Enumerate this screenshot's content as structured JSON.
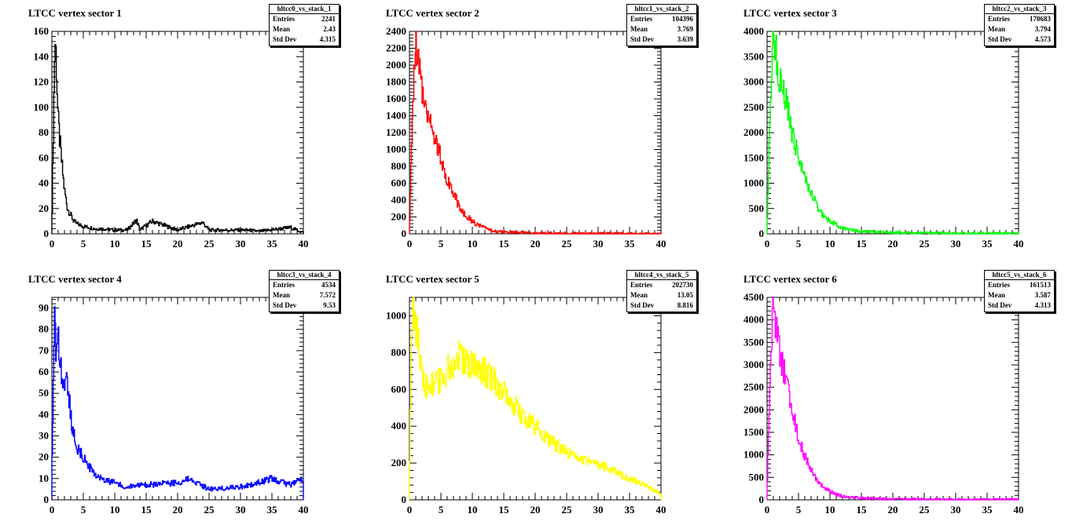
{
  "x_ticks": [
    "0",
    "5",
    "10",
    "15",
    "20",
    "25",
    "30",
    "35",
    "40"
  ],
  "chart_data": [
    {
      "type": "histogram",
      "title": "LTCC vertex sector 1",
      "color": "#000000",
      "stats": {
        "name": "hltcc0_vs_stack_1",
        "rows": [
          {
            "k": "Entries",
            "v": "2241"
          },
          {
            "k": "Mean",
            "v": "2.43"
          },
          {
            "k": "Std Dev",
            "v": "4.315"
          }
        ]
      },
      "xlim": [
        0,
        40
      ],
      "ylim": [
        0,
        160
      ],
      "y_ticks": [
        0,
        20,
        40,
        60,
        80,
        100,
        120,
        140,
        160
      ],
      "x": [
        0,
        0.5,
        0.7,
        1,
        1.5,
        2,
        2.5,
        3,
        3.5,
        4,
        5,
        6,
        7,
        8,
        10,
        12,
        13.5,
        14,
        16,
        20,
        24,
        25,
        29,
        31,
        33,
        38,
        40
      ],
      "y": [
        5,
        155,
        140,
        90,
        60,
        35,
        20,
        15,
        10,
        8,
        6,
        5,
        4,
        4,
        3,
        3,
        11,
        3,
        10,
        3,
        9,
        3,
        3,
        3,
        2,
        5,
        1
      ]
    },
    {
      "type": "histogram",
      "title": "LTCC vertex sector 2",
      "color": "#ff0000",
      "stats": {
        "name": "hltcc1_vs_stack_2",
        "rows": [
          {
            "k": "Entries",
            "v": "104396"
          },
          {
            "k": "Mean",
            "v": "3.769"
          },
          {
            "k": "Std Dev",
            "v": "3.639"
          }
        ]
      },
      "xlim": [
        0,
        40
      ],
      "ylim": [
        0,
        2400
      ],
      "y_ticks": [
        0,
        200,
        400,
        600,
        800,
        1000,
        1200,
        1400,
        1600,
        1800,
        2000,
        2200,
        2400
      ],
      "x": [
        0,
        0.5,
        1,
        1.5,
        2,
        3,
        4,
        5,
        6,
        7,
        8,
        9,
        10,
        11,
        12,
        13,
        15,
        20,
        25,
        30,
        35,
        40
      ],
      "y": [
        0,
        1500,
        2300,
        2000,
        1700,
        1450,
        1150,
        900,
        650,
        500,
        300,
        220,
        150,
        100,
        70,
        40,
        20,
        10,
        5,
        3,
        2,
        1
      ]
    },
    {
      "type": "histogram",
      "title": "LTCC vertex sector 3",
      "color": "#00ff00",
      "stats": {
        "name": "hltcc2_vs_stack_3",
        "rows": [
          {
            "k": "Entries",
            "v": "170683"
          },
          {
            "k": "Mean",
            "v": "3.794"
          },
          {
            "k": "Std Dev",
            "v": "4.573"
          }
        ]
      },
      "xlim": [
        0,
        40
      ],
      "ylim": [
        0,
        4000
      ],
      "y_ticks": [
        0,
        500,
        1000,
        1500,
        2000,
        2500,
        3000,
        3500,
        4000
      ],
      "x": [
        0,
        0.5,
        1,
        1.5,
        2,
        3,
        4,
        5,
        6,
        7,
        8,
        9,
        10,
        11,
        12,
        13,
        15,
        20,
        25,
        30,
        35,
        40
      ],
      "y": [
        100,
        2500,
        4000,
        3500,
        3100,
        2600,
        2000,
        1500,
        1100,
        800,
        550,
        350,
        250,
        180,
        120,
        80,
        50,
        25,
        15,
        10,
        8,
        5
      ]
    },
    {
      "type": "histogram",
      "title": "LTCC vertex sector 4",
      "color": "#0000ff",
      "stats": {
        "name": "hltcc3_vs_stack_4",
        "rows": [
          {
            "k": "Entries",
            "v": "4534"
          },
          {
            "k": "Mean",
            "v": "7.572"
          },
          {
            "k": "Std Dev",
            "v": "9.53"
          }
        ]
      },
      "xlim": [
        0,
        40
      ],
      "ylim": [
        0,
        95
      ],
      "y_ticks": [
        0,
        10,
        20,
        30,
        40,
        50,
        60,
        70,
        80,
        90
      ],
      "x": [
        0,
        0.5,
        0.7,
        1,
        1.5,
        2,
        2.5,
        3,
        3.5,
        4,
        5,
        6,
        7,
        8,
        10,
        12,
        15,
        20,
        22,
        25,
        30,
        35,
        38,
        40
      ],
      "y": [
        12,
        92,
        65,
        75,
        60,
        50,
        55,
        40,
        30,
        25,
        20,
        15,
        12,
        10,
        8,
        6,
        7,
        8,
        10,
        5,
        6,
        10,
        7,
        10
      ]
    },
    {
      "type": "histogram",
      "title": "LTCC vertex sector 5",
      "color": "#ffff00",
      "stats": {
        "name": "hltcc4_vs_stack_5",
        "rows": [
          {
            "k": "Entries",
            "v": "202730"
          },
          {
            "k": "Mean",
            "v": "13.05"
          },
          {
            "k": "Std Dev",
            "v": "8.816"
          }
        ]
      },
      "xlim": [
        0,
        40
      ],
      "ylim": [
        0,
        1100
      ],
      "y_ticks": [
        0,
        200,
        400,
        600,
        800,
        1000
      ],
      "x": [
        0,
        0.3,
        0.7,
        1,
        1.5,
        2,
        2.5,
        3,
        4,
        5,
        6,
        7,
        8,
        9,
        10,
        11,
        12,
        13,
        14,
        15,
        16,
        17,
        18,
        20,
        22,
        24,
        26,
        28,
        30,
        32,
        34,
        36,
        38,
        39.5,
        40
      ],
      "y": [
        80,
        850,
        1050,
        960,
        820,
        700,
        620,
        600,
        630,
        660,
        700,
        740,
        780,
        760,
        740,
        720,
        700,
        660,
        620,
        580,
        540,
        500,
        460,
        400,
        340,
        280,
        240,
        210,
        190,
        170,
        130,
        100,
        70,
        40,
        30
      ]
    },
    {
      "type": "histogram",
      "title": "LTCC vertex sector 6",
      "color": "#ff00ff",
      "stats": {
        "name": "hltcc5_vs_stack_6",
        "rows": [
          {
            "k": "Entries",
            "v": "161513"
          },
          {
            "k": "Mean",
            "v": "3.587"
          },
          {
            "k": "Std Dev",
            "v": "4.313"
          }
        ]
      },
      "xlim": [
        0,
        40
      ],
      "ylim": [
        0,
        4500
      ],
      "y_ticks": [
        0,
        500,
        1000,
        1500,
        2000,
        2500,
        3000,
        3500,
        4000,
        4500
      ],
      "x": [
        0,
        0.5,
        1,
        1.5,
        2,
        3,
        4,
        5,
        6,
        7,
        8,
        9,
        10,
        11,
        12,
        13,
        15,
        20,
        25,
        30,
        35,
        40
      ],
      "y": [
        100,
        3000,
        4450,
        3900,
        3300,
        2700,
        2000,
        1400,
        950,
        650,
        420,
        280,
        180,
        120,
        80,
        55,
        35,
        18,
        10,
        7,
        5,
        3
      ]
    }
  ]
}
